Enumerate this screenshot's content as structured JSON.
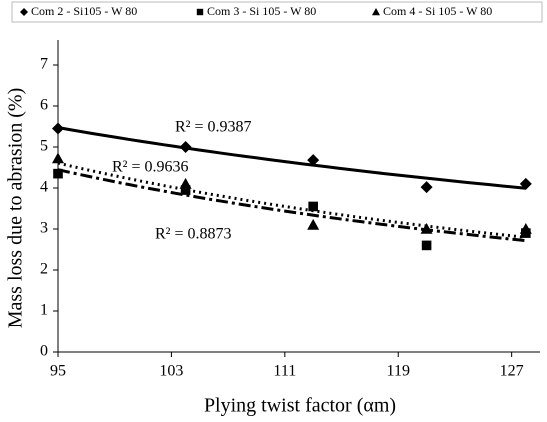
{
  "chart_data": {
    "type": "scatter",
    "x_label": "Plying twist factor (αm)",
    "y_label": "Mass loss due to abrasion (%)",
    "x": [
      95,
      104,
      113,
      121,
      128
    ],
    "series": [
      {
        "name": "Com 2 - Si105 - W 80",
        "color": "#000000",
        "marker": "diamond",
        "line": "solid",
        "values": [
          5.45,
          5.0,
          4.68,
          4.02,
          4.1
        ]
      },
      {
        "name": "Com 3 - Si 105 - W 80",
        "color": "#000000",
        "marker": "square",
        "line": "dashdot",
        "values": [
          4.35,
          3.95,
          3.55,
          2.6,
          2.9
        ]
      },
      {
        "name": "Com 4 - Si 105 - W 80",
        "color": "#000000",
        "marker": "triangle",
        "line": "dotted",
        "values": [
          4.72,
          4.1,
          3.1,
          3.0,
          3.0
        ]
      }
    ],
    "annotations": [
      "R² = 0.9387",
      "R² = 0.9636",
      "R² = 0.8873"
    ],
    "xlim": [
      95,
      129
    ],
    "xticks": [
      95,
      103,
      111,
      119,
      127
    ],
    "ylim": [
      0,
      7
    ],
    "yticks": [
      0,
      1,
      2,
      3,
      4,
      5,
      6,
      7
    ],
    "legend": "top"
  }
}
